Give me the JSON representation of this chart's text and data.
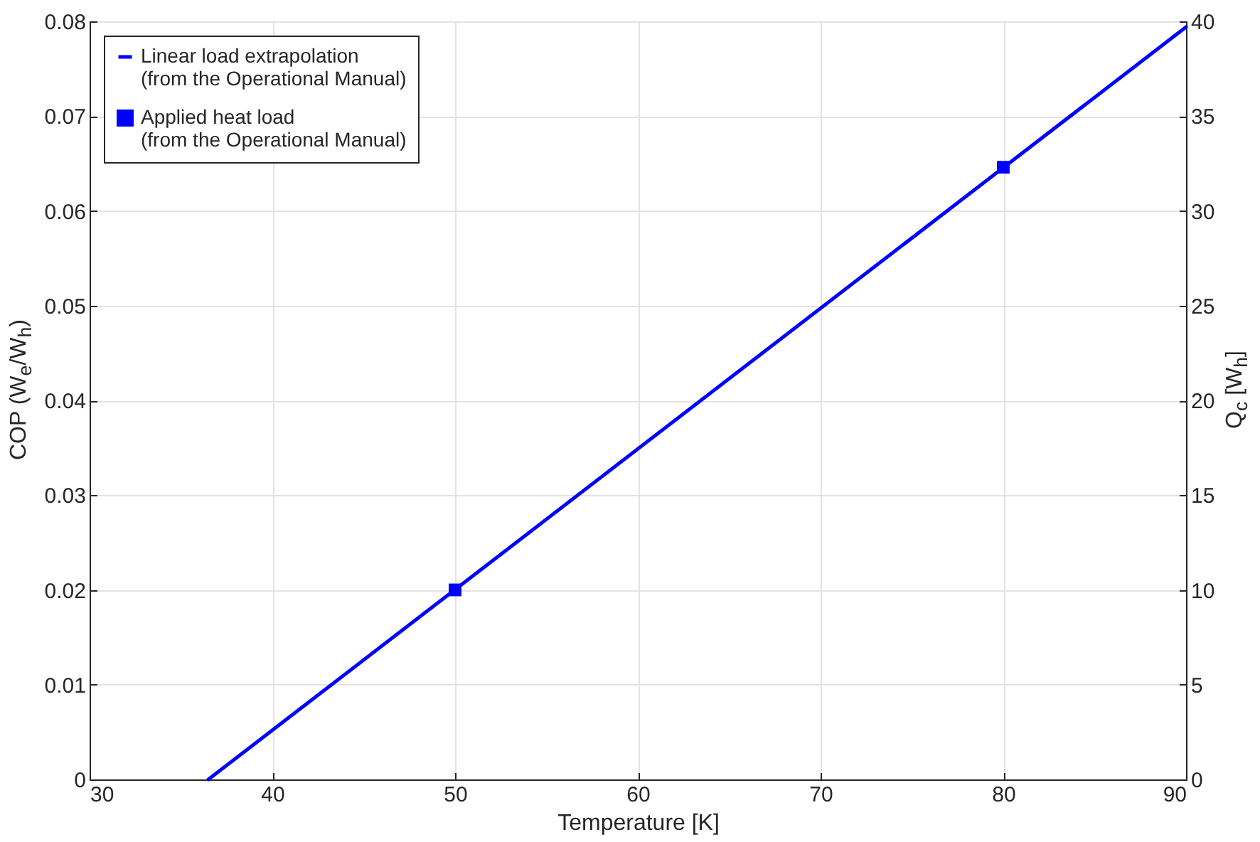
{
  "chart_data": {
    "type": "line",
    "xlabel": "Temperature [K]",
    "ylabel": "COP (W$_{e}$/W$_{h}$)",
    "y2label": "Q$_{c}$ [W$_{h}$]",
    "series": [
      {
        "name": "Linear load extrapolation (from the Operational Manual)",
        "type": "line",
        "axis": "y2",
        "color": "#0000ff",
        "x": [
          36.5,
          90
        ],
        "values": [
          0,
          39.7
        ],
        "marker": "none",
        "line_style": "solid"
      },
      {
        "name": "Applied heat load (from the Operational Manual)",
        "type": "scatter",
        "axis": "y2",
        "color": "#0000ff",
        "x": [
          50,
          80
        ],
        "values": [
          10,
          32.3
        ],
        "marker": "square"
      }
    ],
    "xlim": [
      30,
      90
    ],
    "xticks": [
      30,
      40,
      50,
      60,
      70,
      80,
      90
    ],
    "ylim": [
      0,
      0.08
    ],
    "yticks": [
      0,
      0.01,
      0.02,
      0.03,
      0.04,
      0.05,
      0.06,
      0.07,
      0.08
    ],
    "y2lim": [
      0,
      40
    ],
    "y2ticks": [
      0,
      5,
      10,
      15,
      20,
      25,
      30,
      35,
      40
    ],
    "grid": true,
    "legend": "top left"
  }
}
